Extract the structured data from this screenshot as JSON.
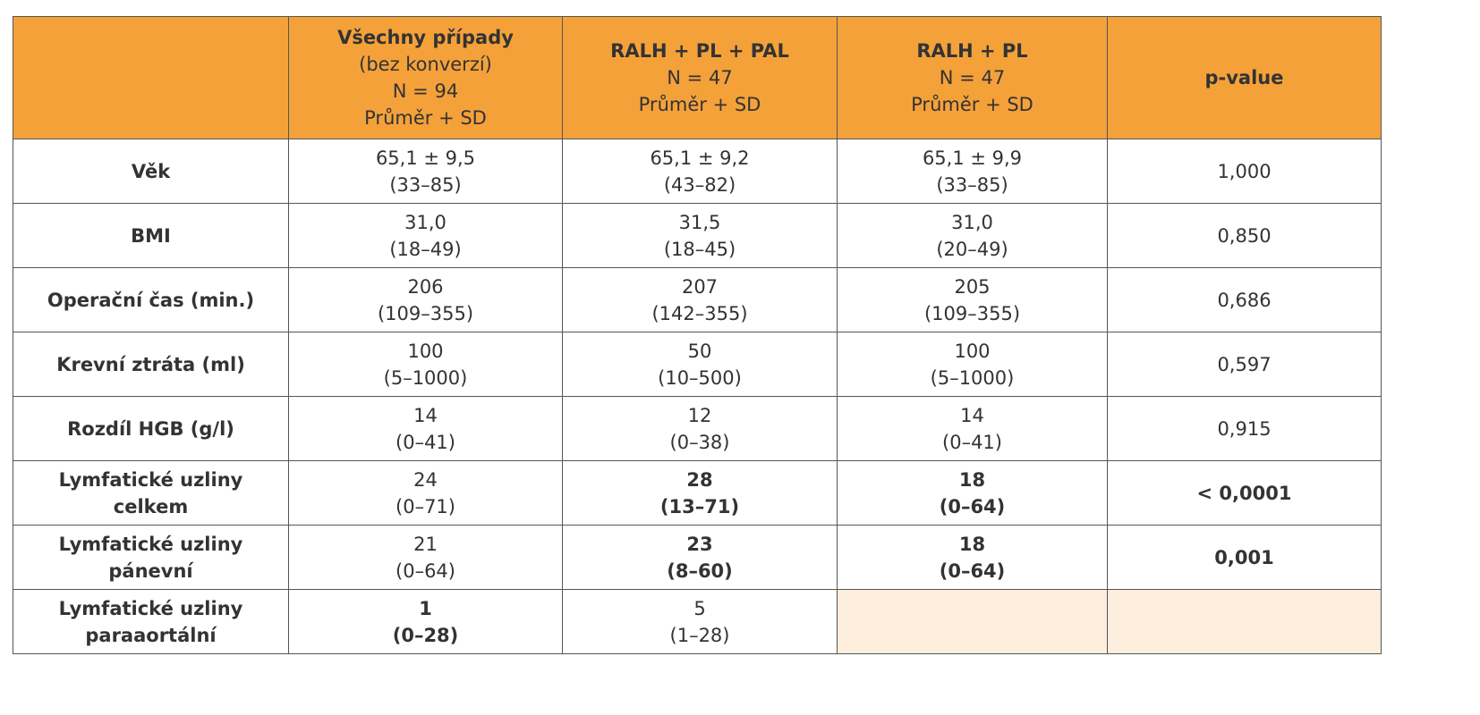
{
  "table": {
    "header": [
      null,
      {
        "title": "Všechny případy",
        "lines": [
          "(bez konverzí)",
          "N = 94",
          "Průměr + SD"
        ]
      },
      {
        "title": "RALH + PL + PAL",
        "lines": [
          "N = 47",
          "Průměr + SD"
        ]
      },
      {
        "title": "RALH + PL",
        "lines": [
          "N = 47",
          "Průměr + SD"
        ]
      },
      {
        "title": "p-value",
        "lines": []
      }
    ],
    "rows": [
      {
        "label": [
          "Věk"
        ],
        "cells": [
          {
            "lines": [
              "65,1 ± 9,5",
              "(33–85)"
            ]
          },
          {
            "lines": [
              "65,1 ± 9,2",
              "(43–82)"
            ]
          },
          {
            "lines": [
              "65,1 ± 9,9",
              "(33–85)"
            ]
          },
          {
            "lines": [
              "1,000"
            ]
          }
        ]
      },
      {
        "label": [
          "BMI"
        ],
        "cells": [
          {
            "lines": [
              "31,0",
              "(18–49)"
            ]
          },
          {
            "lines": [
              "31,5",
              "(18–45)"
            ]
          },
          {
            "lines": [
              "31,0",
              "(20–49)"
            ]
          },
          {
            "lines": [
              "0,850"
            ]
          }
        ]
      },
      {
        "label": [
          "Operační čas (min.)"
        ],
        "cells": [
          {
            "lines": [
              "206",
              "(109–355)"
            ]
          },
          {
            "lines": [
              "207",
              "(142–355)"
            ]
          },
          {
            "lines": [
              "205",
              "(109–355)"
            ]
          },
          {
            "lines": [
              "0,686"
            ]
          }
        ]
      },
      {
        "label": [
          "Krevní ztráta (ml)"
        ],
        "cells": [
          {
            "lines": [
              "100",
              "(5–1000)"
            ]
          },
          {
            "lines": [
              "50",
              "(10–500)"
            ]
          },
          {
            "lines": [
              "100",
              "(5–1000)"
            ]
          },
          {
            "lines": [
              "0,597"
            ]
          }
        ]
      },
      {
        "label": [
          "Rozdíl HGB (g/l)"
        ],
        "cells": [
          {
            "lines": [
              "14",
              "(0–41)"
            ]
          },
          {
            "lines": [
              "12",
              "(0–38)"
            ]
          },
          {
            "lines": [
              "14",
              "(0–41)"
            ]
          },
          {
            "lines": [
              "0,915"
            ]
          }
        ]
      },
      {
        "label": [
          "Lymfatické uzliny",
          "celkem"
        ],
        "cells": [
          {
            "lines": [
              "24",
              "(0–71)"
            ]
          },
          {
            "lines": [
              "28",
              "(13–71)"
            ],
            "bold": true
          },
          {
            "lines": [
              "18",
              "(0–64)"
            ],
            "bold": true
          },
          {
            "lines": [
              "< 0,0001"
            ],
            "bold": true
          }
        ]
      },
      {
        "label": [
          "Lymfatické uzliny",
          "pánevní"
        ],
        "cells": [
          {
            "lines": [
              "21",
              "(0–64)"
            ]
          },
          {
            "lines": [
              "23",
              "(8–60)"
            ],
            "bold": true
          },
          {
            "lines": [
              "18",
              "(0–64)"
            ],
            "bold": true
          },
          {
            "lines": [
              "0,001"
            ],
            "bold": true
          }
        ]
      },
      {
        "label": [
          "Lymfatické uzliny",
          "paraaortální"
        ],
        "cells": [
          {
            "lines": [
              "1",
              "(0–28)"
            ],
            "bold": true
          },
          {
            "lines": [
              "5",
              "(1–28)"
            ]
          },
          null,
          null
        ]
      }
    ]
  }
}
